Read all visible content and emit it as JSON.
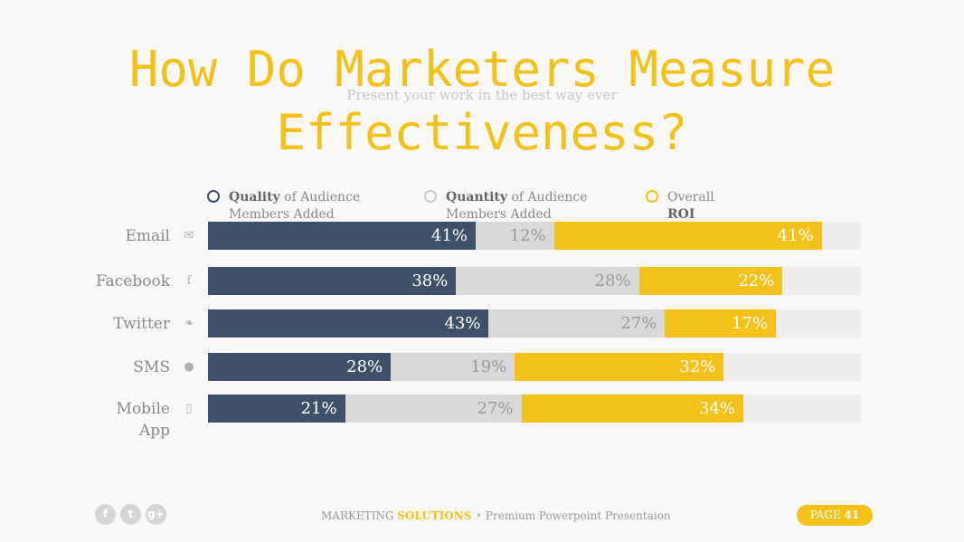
{
  "title": "How Do Marketers Measure Effectiveness?",
  "subtitle": "Present your work in the best way ever",
  "legend": [
    {
      "bold": "Quality",
      "rest": " of Audience",
      "line2": "Members Added",
      "color": "#3f5068"
    },
    {
      "bold": "Quantity",
      "rest": " of Audience",
      "line2": "Members Added",
      "color": "#c8c8c8"
    },
    {
      "bold": "",
      "rest": "Overall",
      "line2": "ROI",
      "color": "#f2c21a"
    }
  ],
  "icons": [
    "envelope-icon",
    "facebook-icon",
    "twitter-icon",
    "chat-bubble-icon",
    "mobile-phone-icon"
  ],
  "chart_data": {
    "type": "bar",
    "orientation": "horizontal-stacked",
    "categories": [
      "Email",
      "Facebook",
      "Twitter",
      "SMS",
      "Mobile App"
    ],
    "series": [
      {
        "name": "Quality of Audience Members Added",
        "values": [
          41,
          38,
          43,
          28,
          21
        ],
        "color": "#3f5068",
        "label_color": "#ffffff"
      },
      {
        "name": "Quantity of Audience Members Added",
        "values": [
          12,
          28,
          27,
          19,
          27
        ],
        "color": "#d9d9d9",
        "label_color": "#9a9a9a"
      },
      {
        "name": "Overall ROI",
        "values": [
          41,
          22,
          17,
          32,
          34
        ],
        "color": "#f2c21a",
        "label_color": "#ffffff"
      }
    ],
    "value_suffix": "%",
    "xlim": [
      0,
      100
    ],
    "grid": false,
    "legend_position": "top"
  },
  "footer": {
    "social": [
      "f",
      "t",
      "g+"
    ],
    "brand_regular": "MARKETING ",
    "brand_bold": "SOLUTIONS",
    "tagline": "Premium Powerpoint Presentaion",
    "page_label": "PAGE",
    "page_number": "41"
  }
}
